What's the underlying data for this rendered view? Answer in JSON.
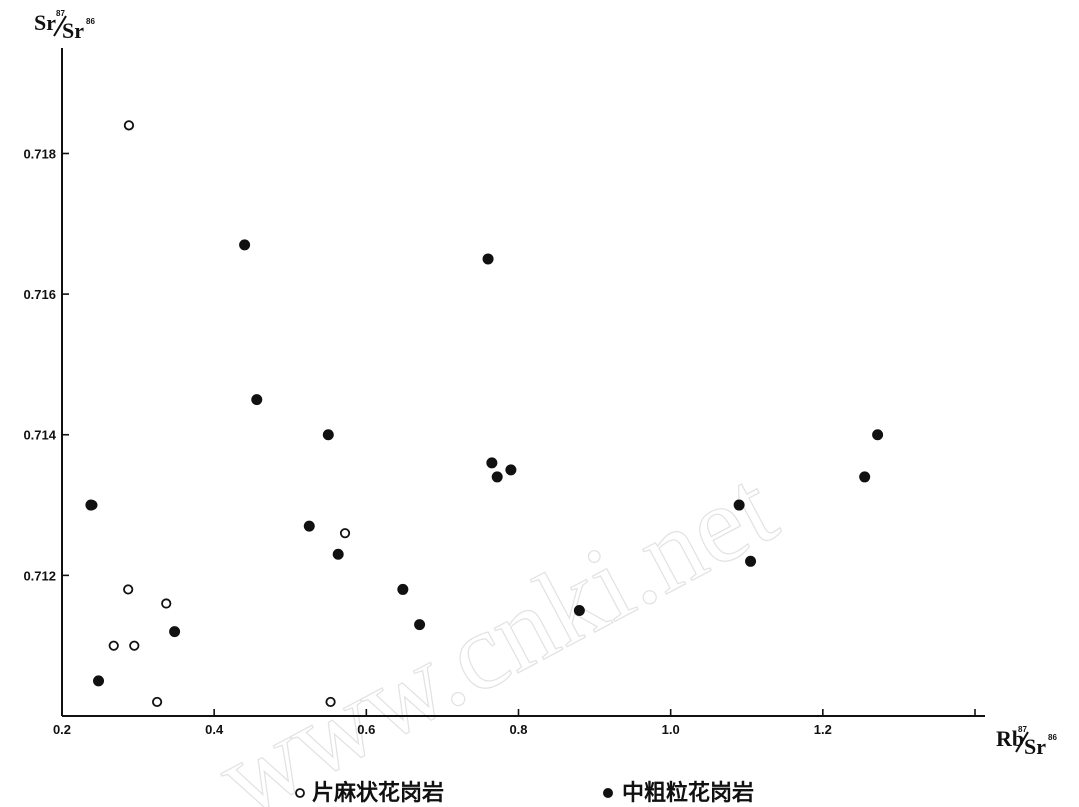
{
  "chart_data": {
    "type": "scatter",
    "title": "",
    "ylabel": {
      "base": "Sr",
      "sup": "87",
      "den": "Sr",
      "den_sup": "86"
    },
    "xlabel": {
      "base": "Rb",
      "sup": "87",
      "den": "Sr",
      "den_sup": "86"
    },
    "xlim": [
      0.2,
      1.4
    ],
    "ylim": [
      0.71,
      0.7195
    ],
    "x_ticks": [
      0.2,
      0.4,
      0.6,
      0.8,
      1.0,
      1.2,
      1.4
    ],
    "x_tick_labels": [
      "0.2",
      "0.4",
      "0.6",
      "0.8",
      "1.0",
      "1.2",
      ""
    ],
    "y_ticks": [
      0.712,
      0.714,
      0.716,
      0.718
    ],
    "y_tick_labels": [
      "0.712",
      "0.714",
      "0.716",
      "0.718"
    ],
    "grid": false,
    "legend_position": "bottom",
    "series": [
      {
        "name": "片麻状花岗岩",
        "marker": "open-circle",
        "points": [
          [
            0.288,
            0.7184
          ],
          [
            0.287,
            0.7118
          ],
          [
            0.337,
            0.7116
          ],
          [
            0.268,
            0.711
          ],
          [
            0.295,
            0.711
          ],
          [
            0.325,
            0.7102
          ],
          [
            0.553,
            0.7102
          ],
          [
            0.572,
            0.7126
          ],
          [
            0.24,
            0.713
          ]
        ]
      },
      {
        "name": "中粗粒花岗岩",
        "marker": "filled-circle",
        "points": [
          [
            0.44,
            0.7167
          ],
          [
            0.456,
            0.7145
          ],
          [
            0.55,
            0.714
          ],
          [
            0.525,
            0.7127
          ],
          [
            0.563,
            0.7123
          ],
          [
            0.648,
            0.7118
          ],
          [
            0.67,
            0.7113
          ],
          [
            0.348,
            0.7112
          ],
          [
            0.248,
            0.7105
          ],
          [
            0.76,
            0.7165
          ],
          [
            0.765,
            0.7136
          ],
          [
            0.772,
            0.7134
          ],
          [
            0.79,
            0.7135
          ],
          [
            0.88,
            0.7115
          ],
          [
            1.09,
            0.713
          ],
          [
            1.105,
            0.7122
          ],
          [
            1.255,
            0.7134
          ],
          [
            1.272,
            0.714
          ],
          [
            0.238,
            0.713
          ]
        ]
      }
    ]
  },
  "watermark": "www.cnki.net"
}
